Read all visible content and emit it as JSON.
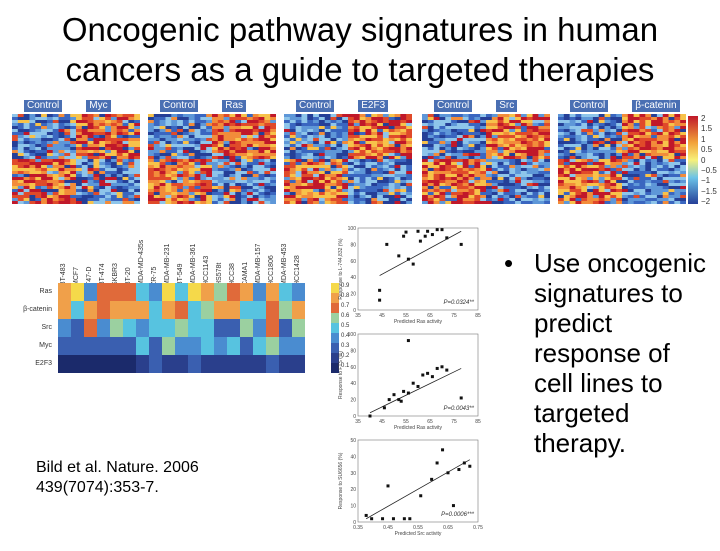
{
  "title_line1": "Oncogenic pathway signatures in human",
  "title_line2": "cancers as a guide to targeted therapies",
  "heatmaps": [
    {
      "left": "Control",
      "right": "Myc"
    },
    {
      "left": "Control",
      "right": "Ras"
    },
    {
      "left": "Control",
      "right": "E2F3"
    },
    {
      "left": "Control",
      "right": "Src"
    },
    {
      "left": "Control",
      "right": "β-catenin"
    }
  ],
  "colorbar_ticks": [
    "2",
    "1.5",
    "1",
    "0.5",
    "0",
    "−0.5",
    "−1",
    "−1.5",
    "−2"
  ],
  "pathway_panel": {
    "cell_lines": [
      "BT-483",
      "MCF7",
      "T47-D",
      "BT-474",
      "SKBR3",
      "BT-20",
      "MDA-MD-435s",
      "ZR-75",
      "MDA-MB-231",
      "BT-549",
      "MDA-MB-361",
      "HCC1143",
      "HS578t",
      "HCC38",
      "CAMA1",
      "MDA-MB-157",
      "HCC1806",
      "MDA-MB-453",
      "HCC1428"
    ],
    "pathways": [
      "Ras",
      "β-catenin",
      "Src",
      "Myc",
      "E2F3"
    ],
    "scale_ticks": [
      "0.9",
      "0.8",
      "0.7",
      "0.6",
      "0.5",
      "0.4",
      "0.3",
      "0.2",
      "0.1"
    ]
  },
  "scatter_plots": [
    {
      "ylabel": "Response to L-744,832 (%)",
      "xlabel": "Predicted Ras activity",
      "pvalue": "P=0.0324**",
      "xticks": [
        "35",
        "45",
        "55",
        "65",
        "75",
        "85"
      ],
      "yticks": [
        "0",
        "20",
        "40",
        "60",
        "80",
        "100"
      ]
    },
    {
      "ylabel": "Response to FTS (%)",
      "xlabel": "Predicted Ras activity",
      "pvalue": "P=0.0043**",
      "xticks": [
        "35",
        "45",
        "55",
        "65",
        "75",
        "85"
      ],
      "yticks": [
        "0",
        "20",
        "40",
        "60",
        "80",
        "100"
      ]
    },
    {
      "ylabel": "Response to SU6656 (%)",
      "xlabel": "Predicted Src activity",
      "pvalue": "P=0.0006***",
      "xticks": [
        "0.35",
        "0.45",
        "0.55",
        "0.65",
        "0.75"
      ],
      "yticks": [
        "0",
        "10",
        "20",
        "30",
        "40",
        "50"
      ]
    }
  ],
  "bullet": "Use oncogenic signatures to predict response of cell lines to targeted therapy.",
  "bullet_symbol": "•",
  "citation_line1": "Bild et al. Nature. 2006",
  "citation_line2": "439(7074):353-7.",
  "colors": {
    "red": "#d7301f",
    "orange": "#f08a3c",
    "yellow": "#f5d94a",
    "cyan": "#57c3e0",
    "blue": "#3a5fb0",
    "navy": "#1b2a6b"
  }
}
